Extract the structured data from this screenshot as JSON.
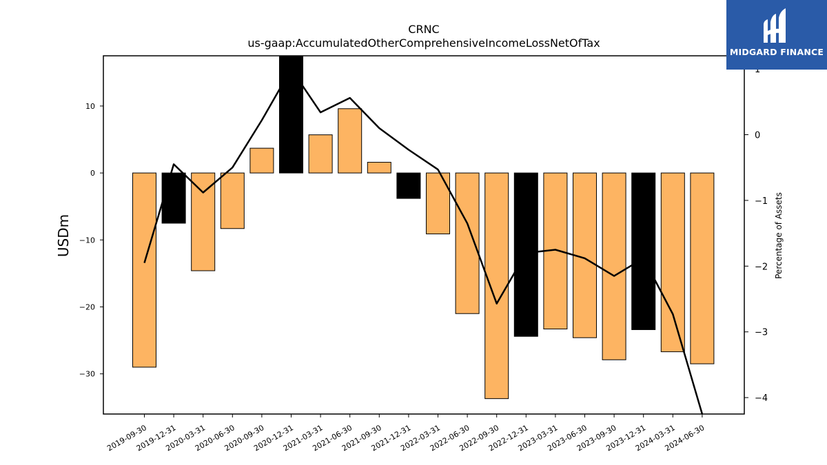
{
  "chart_data": {
    "type": "bar",
    "title": "CRNC",
    "subtitle": "us-gaap:AccumulatedOtherComprehensiveIncomeLossNetOfTax",
    "ylabel": "USDm",
    "y2label": "Percentage of Assets",
    "ylim": [
      -36,
      17.5
    ],
    "y2lim": [
      -4.25,
      1.2
    ],
    "yticks": [
      10,
      0,
      -10,
      -20,
      -30
    ],
    "y2ticks": [
      1,
      0,
      -1,
      -2,
      -3,
      -4
    ],
    "categories": [
      "2019-09-30",
      "2019-12-31",
      "2020-03-31",
      "2020-06-30",
      "2020-09-30",
      "2020-12-31",
      "2021-03-31",
      "2021-06-30",
      "2021-09-30",
      "2021-12-31",
      "2022-03-31",
      "2022-06-30",
      "2022-09-30",
      "2022-12-31",
      "2023-03-31",
      "2023-06-30",
      "2023-09-30",
      "2023-12-31",
      "2024-03-31",
      "2024-06-30"
    ],
    "series": [
      {
        "axis": "left",
        "kind": "bar",
        "values": [
          -29.0,
          -7.5,
          -14.6,
          -8.3,
          3.7,
          17.5,
          5.7,
          9.6,
          1.6,
          -3.8,
          -9.1,
          -21.0,
          -33.7,
          -24.4,
          -23.3,
          -24.6,
          -27.9,
          -23.4,
          -26.7,
          -28.5
        ],
        "highlight": [
          false,
          true,
          false,
          false,
          false,
          true,
          false,
          false,
          false,
          true,
          false,
          false,
          false,
          true,
          false,
          false,
          false,
          true,
          false,
          false
        ]
      },
      {
        "axis": "right",
        "kind": "line",
        "values": [
          -1.95,
          -0.45,
          -0.88,
          -0.5,
          0.22,
          1.0,
          0.34,
          0.56,
          0.1,
          -0.23,
          -0.53,
          -1.35,
          -2.57,
          -1.8,
          -1.75,
          -1.88,
          -2.15,
          -1.88,
          -2.73,
          -4.25
        ]
      }
    ],
    "colors": {
      "bar": "#fdb462",
      "highlight": "#000000",
      "line": "#000000"
    },
    "grid": false,
    "legend": "none"
  },
  "logo": {
    "text": "MIDGARD FINANCE",
    "icon": "midgard-logo-icon"
  }
}
